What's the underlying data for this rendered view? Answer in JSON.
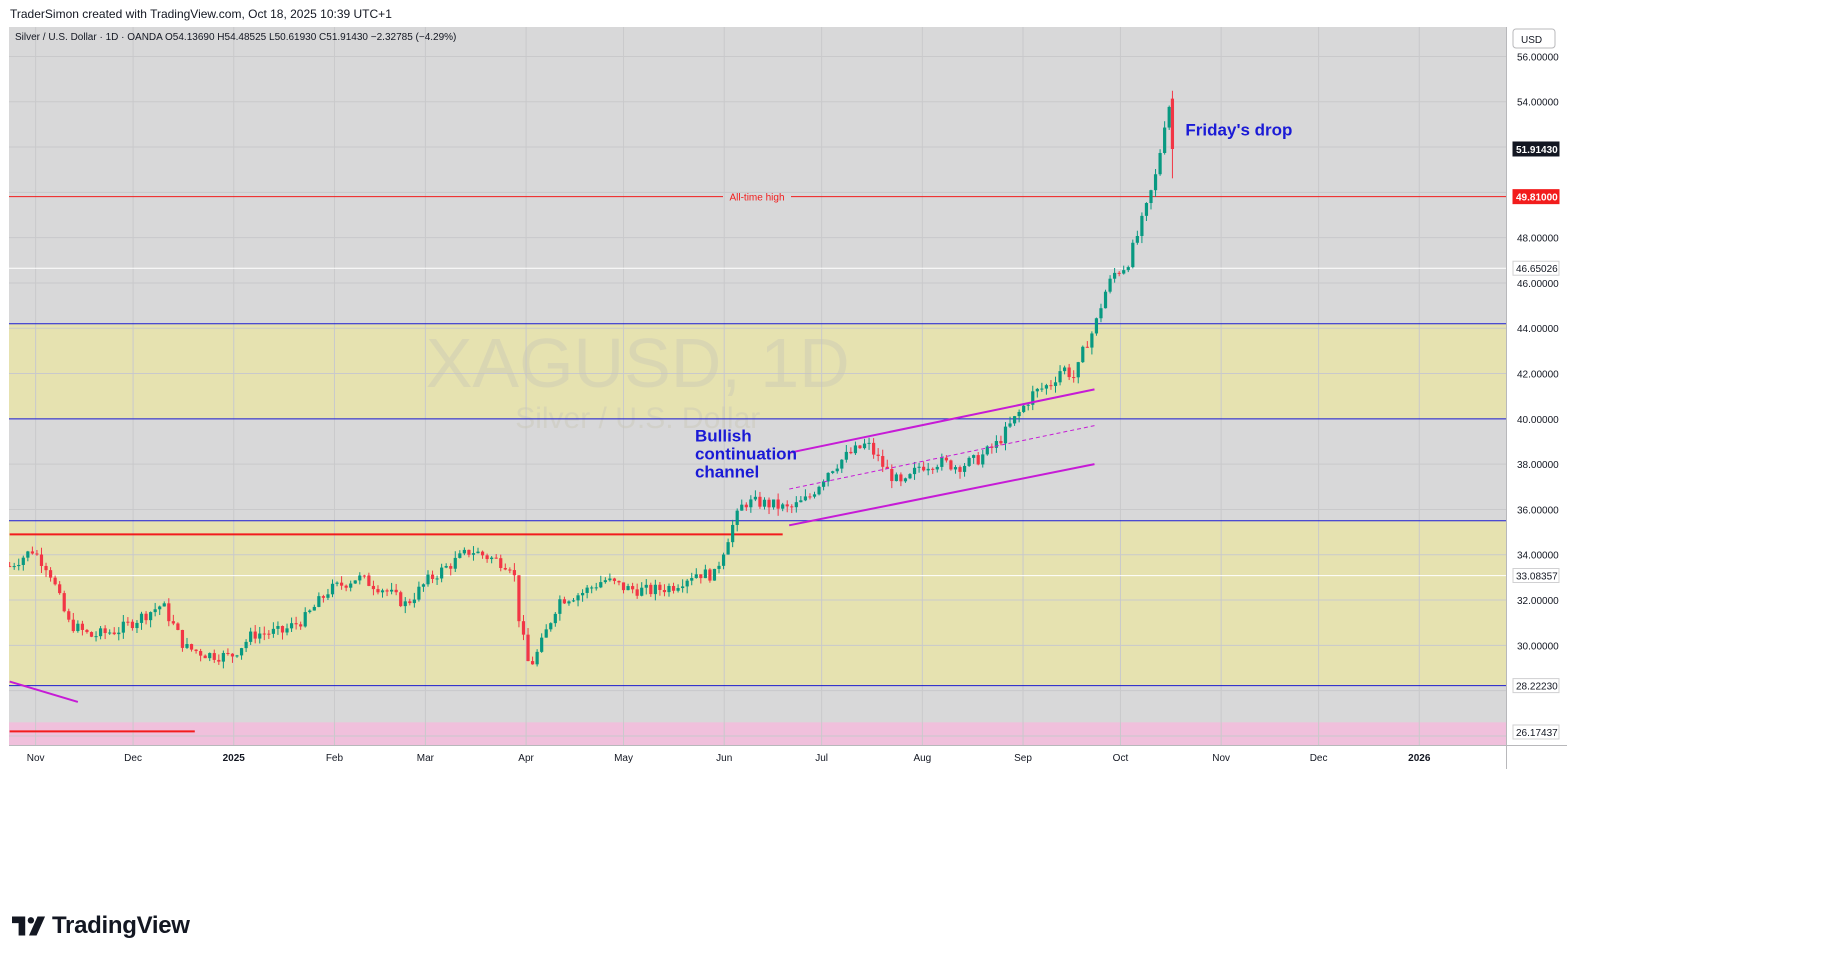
{
  "header": {
    "credit": "TraderSimon created with TradingView.com, Oct 18, 2025 10:39 UTC+1",
    "legend": "Silver / U.S. Dollar · 1D · OANDA  O54.13690  H54.48525  L50.61930  C51.91430  −2.32785 (−4.29%)",
    "currency": "USD"
  },
  "watermark": {
    "symbol": "XAGUSD, 1D",
    "name": "Silver / U.S. Dollar"
  },
  "logo": {
    "text": "TradingView"
  },
  "colors": {
    "up": "#089981",
    "down": "#f23645",
    "zone": "#e6e2b0",
    "band": "#f0c0dc",
    "channel": "#c61bd6",
    "hline": "#1c1cd0",
    "support": "#f21c1c"
  },
  "chart_data": {
    "type": "candlestick",
    "symbol": "XAGUSD",
    "timeframe": "1D",
    "ylim": [
      25.6,
      57.3
    ],
    "xlabels": [
      {
        "label": "Nov",
        "day": 4
      },
      {
        "label": "Dec",
        "day": 34
      },
      {
        "label": "2025",
        "day": 65
      },
      {
        "label": "Feb",
        "day": 96
      },
      {
        "label": "Mar",
        "day": 124
      },
      {
        "label": "Apr",
        "day": 155
      },
      {
        "label": "May",
        "day": 185
      },
      {
        "label": "Jun",
        "day": 216
      },
      {
        "label": "Jul",
        "day": 246
      },
      {
        "label": "Aug",
        "day": 277
      },
      {
        "label": "Sep",
        "day": 308
      },
      {
        "label": "Oct",
        "day": 338
      },
      {
        "label": "Nov",
        "day": 369
      },
      {
        "label": "Dec",
        "day": 399
      },
      {
        "label": "2026",
        "day": 430
      }
    ],
    "yticks": [
      "56.00000",
      "54.00000",
      "48.00000",
      "46.00000",
      "44.00000",
      "42.00000",
      "40.00000",
      "38.00000",
      "36.00000",
      "34.00000",
      "32.00000",
      "30.00000"
    ],
    "price_labels": [
      {
        "value": 51.9143,
        "text": "51.91430",
        "style": "last"
      },
      {
        "value": 49.81,
        "text": "49.81000",
        "style": "ath"
      },
      {
        "value": 46.65026,
        "text": "46.65026",
        "style": "level"
      },
      {
        "value": 33.08357,
        "text": "33.08357",
        "style": "level"
      },
      {
        "value": 28.2223,
        "text": "28.22230",
        "style": "level"
      },
      {
        "value": 26.17437,
        "text": "26.17437",
        "style": "level"
      }
    ],
    "zones": [
      {
        "from": 40.0,
        "to": 44.2,
        "color": "#e6e2b0"
      },
      {
        "from": 28.2,
        "to": 35.5,
        "color": "#e6e2b0"
      },
      {
        "from": 25.6,
        "to": 26.6,
        "color": "#f0c0dc"
      }
    ],
    "hlines": [
      {
        "value": 44.2,
        "color": "#1c1cd0"
      },
      {
        "value": 40.0,
        "color": "#1c1cd0"
      },
      {
        "value": 35.5,
        "color": "#1c1cd0"
      },
      {
        "value": 28.22,
        "color": "#1c1cd0"
      },
      {
        "value": 46.65,
        "color": "#ffffff"
      },
      {
        "value": 33.08,
        "color": "#ffffff"
      }
    ],
    "ath_line": {
      "value": 49.81,
      "label": "All-time high"
    },
    "support": [
      {
        "x1": -4,
        "x2": 234,
        "y": 34.9
      },
      {
        "x1": -4,
        "x2": 53,
        "y": 26.2
      }
    ],
    "channel": {
      "upper": [
        [
          236,
          38.5
        ],
        [
          330,
          41.3
        ]
      ],
      "lower": [
        [
          236,
          35.3
        ],
        [
          330,
          38.0
        ]
      ],
      "mid": [
        [
          236,
          36.9
        ],
        [
          330,
          39.7
        ]
      ]
    },
    "trendline": [
      [
        -4,
        28.4
      ],
      [
        17,
        27.5
      ]
    ],
    "annotations": [
      {
        "text": "Bullish continuation channel",
        "lines": [
          "Bullish",
          "continuation",
          "channel"
        ],
        "day": 207,
        "value": 39.0,
        "color": "#1a1ad6"
      },
      {
        "text": "Friday's drop",
        "day": 358,
        "value": 52.5,
        "color": "#1a1ad6"
      }
    ],
    "series": [
      {
        "name": "XAGUSD",
        "close_path": [
          [
            -4,
            33.5
          ],
          [
            3,
            34.2
          ],
          [
            8,
            33.4
          ],
          [
            14,
            31.0
          ],
          [
            21,
            30.4
          ],
          [
            30,
            30.7
          ],
          [
            37,
            31.3
          ],
          [
            43,
            31.8
          ],
          [
            50,
            29.9
          ],
          [
            57,
            29.6
          ],
          [
            64,
            29.5
          ],
          [
            71,
            30.5
          ],
          [
            80,
            30.6
          ],
          [
            87,
            31.2
          ],
          [
            94,
            32.4
          ],
          [
            103,
            33.0
          ],
          [
            111,
            32.5
          ],
          [
            118,
            31.8
          ],
          [
            125,
            32.9
          ],
          [
            132,
            33.6
          ],
          [
            138,
            34.2
          ],
          [
            145,
            33.8
          ],
          [
            151,
            33.5
          ],
          [
            153,
            31.0
          ],
          [
            156,
            29.0
          ],
          [
            159,
            29.8
          ],
          [
            165,
            32.0
          ],
          [
            172,
            32.3
          ],
          [
            179,
            32.9
          ],
          [
            186,
            32.5
          ],
          [
            193,
            32.4
          ],
          [
            200,
            32.6
          ],
          [
            207,
            33.2
          ],
          [
            213,
            33.1
          ],
          [
            218,
            35.1
          ],
          [
            222,
            36.3
          ],
          [
            227,
            36.3
          ],
          [
            231,
            36.2
          ],
          [
            236,
            36.0
          ],
          [
            242,
            36.5
          ],
          [
            248,
            37.7
          ],
          [
            254,
            38.4
          ],
          [
            260,
            38.9
          ],
          [
            266,
            37.7
          ],
          [
            271,
            37.0
          ],
          [
            276,
            37.9
          ],
          [
            282,
            38.1
          ],
          [
            288,
            37.9
          ],
          [
            294,
            38.2
          ],
          [
            300,
            38.9
          ],
          [
            306,
            40.1
          ],
          [
            311,
            41.1
          ],
          [
            317,
            41.6
          ],
          [
            320,
            42.3
          ],
          [
            324,
            41.8
          ],
          [
            327,
            43.2
          ],
          [
            330,
            44.0
          ],
          [
            333,
            45.5
          ],
          [
            336,
            46.4
          ],
          [
            340,
            46.8
          ],
          [
            343,
            48.0
          ],
          [
            346,
            49.3
          ],
          [
            349,
            50.8
          ],
          [
            351,
            52.5
          ],
          [
            352.8,
            54.24
          ],
          [
            354,
            51.9143
          ]
        ]
      }
    ],
    "last_candle": {
      "open": 54.1369,
      "high": 54.48525,
      "low": 50.6193,
      "close": 51.9143
    }
  }
}
